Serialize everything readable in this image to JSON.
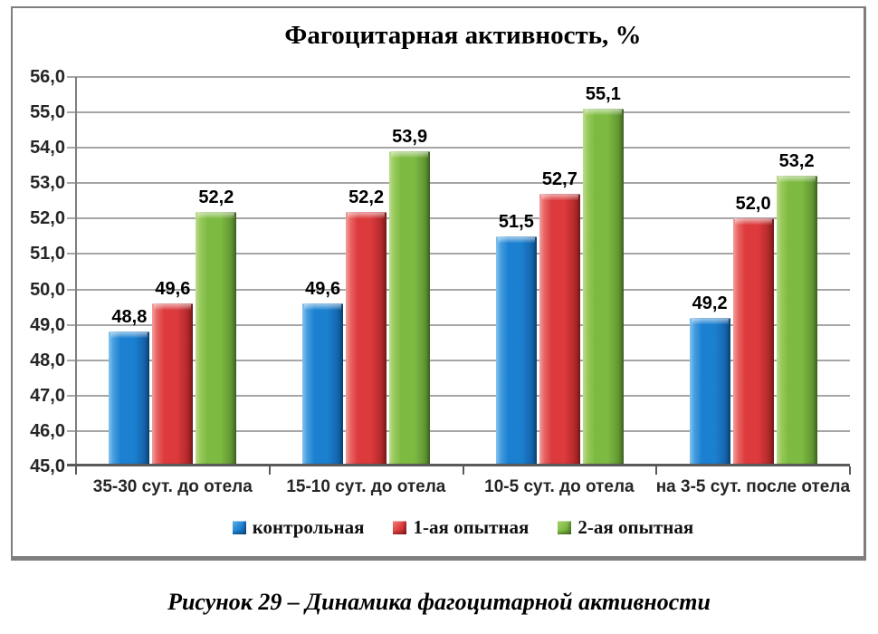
{
  "caption": "Рисунок 29 – Динамика фагоцитарной активности",
  "chart_data": {
    "type": "bar",
    "title": "Фагоцитарная активность, %",
    "xlabel": "",
    "ylabel": "",
    "categories": [
      "35-30 сут. до отела",
      "15-10 сут. до отела",
      "10-5 сут. до отела",
      "на 3-5 сут. после отела"
    ],
    "series": [
      {
        "name": "контрольная",
        "values": [
          48.8,
          49.6,
          51.5,
          49.2
        ],
        "labels": [
          "48,8",
          "49,6",
          "51,5",
          "49,2"
        ],
        "color": "#1C80D1",
        "color_light": "#5FB0EA",
        "color_dark": "#10589B"
      },
      {
        "name": "1-ая опытная",
        "values": [
          49.6,
          52.2,
          52.7,
          52.0
        ],
        "labels": [
          "49,6",
          "52,2",
          "52,7",
          "52,0"
        ],
        "color": "#DC3A3C",
        "color_light": "#F0807E",
        "color_dark": "#9E2123"
      },
      {
        "name": "2-ая опытная",
        "values": [
          52.2,
          53.9,
          55.1,
          53.2
        ],
        "labels": [
          "52,2",
          "53,9",
          "55,1",
          "53,2"
        ],
        "color": "#7DBA42",
        "color_light": "#A8D36A",
        "color_dark": "#55862C"
      }
    ],
    "ylim": [
      45.0,
      56.0
    ],
    "ytick_step": 1.0,
    "ytick_labels": [
      "45,0",
      "46,0",
      "47,0",
      "48,0",
      "49,0",
      "50,0",
      "51,0",
      "52,0",
      "53,0",
      "54,0",
      "55,0",
      "56,0"
    ],
    "grid": true,
    "grid_color": "#A6A6A6",
    "axis_color": "#595959",
    "legend_position": "bottom",
    "value_labels": "outside-end"
  }
}
